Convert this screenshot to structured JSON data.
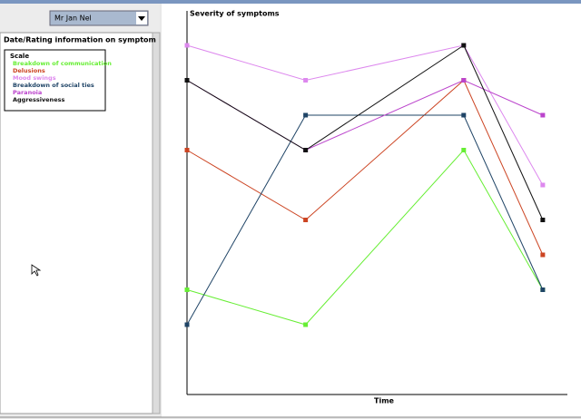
{
  "dropdown": {
    "value": "Mr Jan Nel"
  },
  "panel": {
    "title": "Date/Rating information on symptom",
    "legend_title": "Scale"
  },
  "chart_data": {
    "type": "line",
    "title": "Severity of symptoms",
    "x_label": "Time",
    "x": [
      0,
      3,
      7,
      9
    ],
    "xlim": [
      0,
      9.6
    ],
    "ylim": [
      0,
      11
    ],
    "series": [
      {
        "name": "Breakdown of communication",
        "color": "#66ee33",
        "values": [
          3,
          2,
          7,
          3
        ]
      },
      {
        "name": "Delusions",
        "color": "#cc4422",
        "values": [
          7,
          5,
          9,
          4
        ]
      },
      {
        "name": "Mood swings",
        "color": "#dd88ee",
        "values": [
          10,
          9,
          10,
          6
        ]
      },
      {
        "name": "Breakdown of social ties",
        "color": "#1f4466",
        "values": [
          2,
          8,
          8,
          3
        ]
      },
      {
        "name": "Paranoia",
        "color": "#bb44cc",
        "values": [
          9,
          7,
          9,
          8
        ]
      },
      {
        "name": "Aggressiveness",
        "color": "#111111",
        "values": [
          9,
          7,
          10,
          5
        ]
      }
    ]
  }
}
